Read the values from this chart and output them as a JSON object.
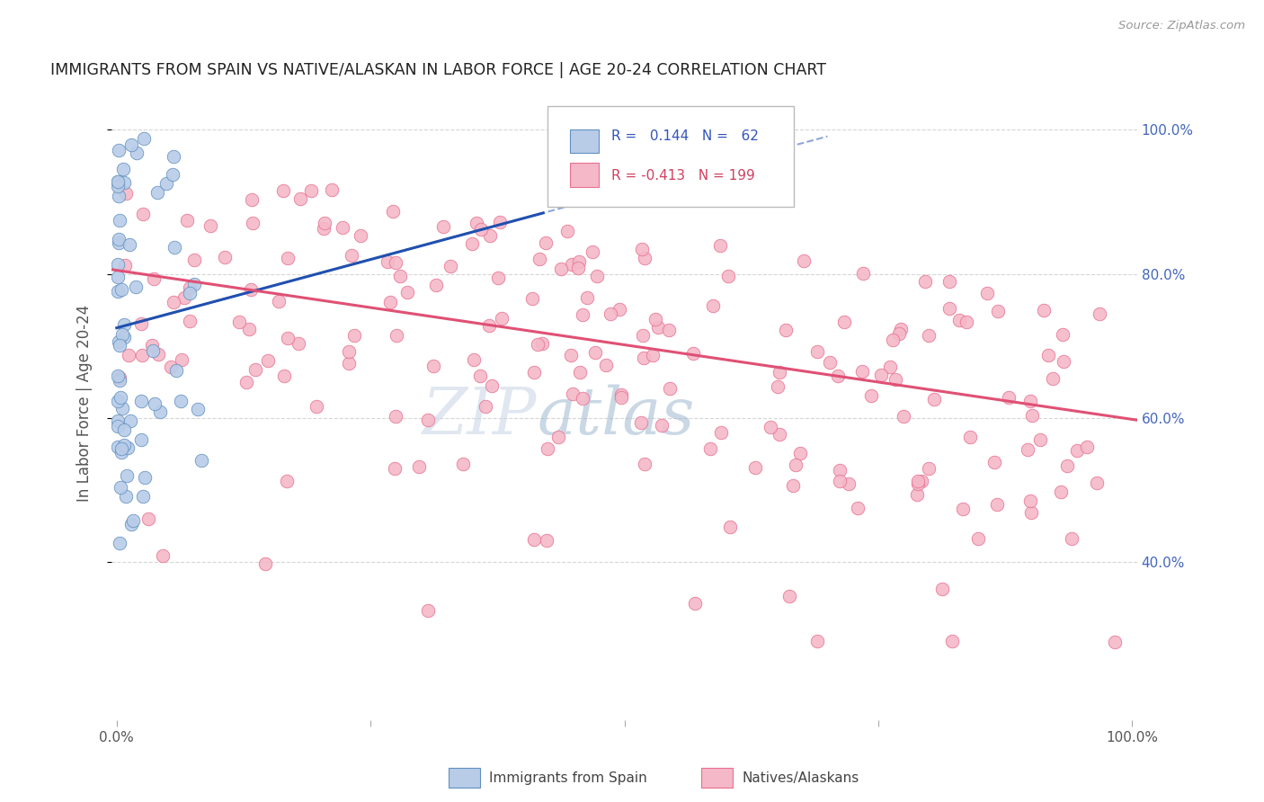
{
  "title": "IMMIGRANTS FROM SPAIN VS NATIVE/ALASKAN IN LABOR FORCE | AGE 20-24 CORRELATION CHART",
  "source": "Source: ZipAtlas.com",
  "ylabel": "In Labor Force | Age 20-24",
  "r_spain": 0.144,
  "n_spain": 62,
  "r_native": -0.413,
  "n_native": 199,
  "blue_fill": "#B8CCE8",
  "blue_edge": "#6090C0",
  "pink_fill": "#F4B8C8",
  "pink_edge": "#E87090",
  "blue_line_color": "#2050B0",
  "pink_line_color": "#E05075",
  "legend_bg": "#FFFFFF",
  "legend_edge": "#BBBBBB",
  "watermark_zip": "#C8D4E8",
  "watermark_atlas": "#A8C0D8",
  "background_color": "#FFFFFF",
  "grid_color": "#CCCCCC",
  "title_color": "#222222",
  "source_color": "#999999",
  "right_tick_color": "#4466BB",
  "xlim": [
    -0.005,
    1.005
  ],
  "ylim": [
    0.18,
    1.06
  ],
  "yticks": [
    0.4,
    0.6,
    0.8,
    1.0
  ],
  "xticks": [
    0.0,
    0.25,
    0.5,
    0.75,
    1.0
  ]
}
